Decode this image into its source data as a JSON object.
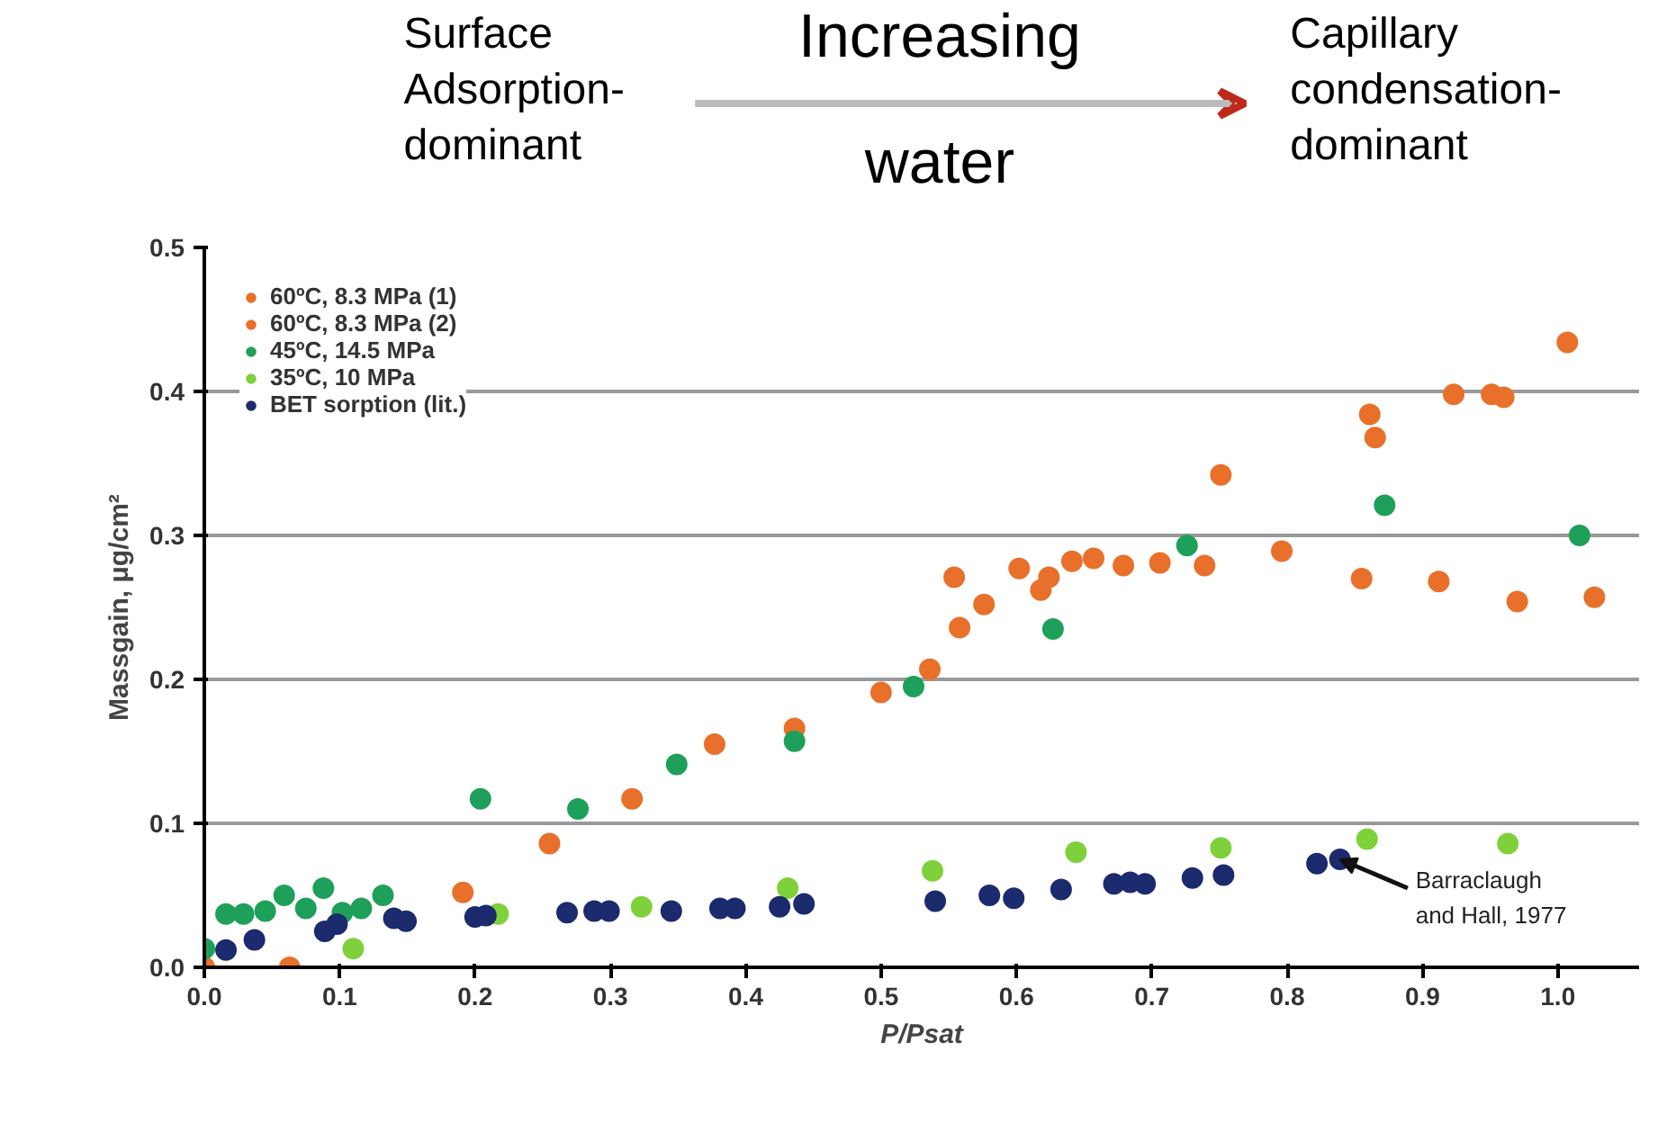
{
  "chart_data": {
    "type": "scatter",
    "xlabel": "P/Psat",
    "ylabel": "Massgain, μg/cm²",
    "annotations": [
      "Surface\nAdsorption-\ndominant",
      "Increasing\nwater",
      "Capillary\ncondensation-\ndominant",
      {
        "text": "Barraclaugh\nand Hall, 1977",
        "x": 0.839,
        "y": 0.075
      }
    ],
    "xlim": [
      0,
      1.06
    ],
    "ylim": [
      0,
      0.5
    ],
    "xticks": [
      {
        "value": 0,
        "label": "0.0"
      },
      0.1,
      0.2,
      0.3,
      0.4,
      0.5,
      0.6,
      0.7,
      0.8,
      0.9,
      {
        "value": 1,
        "label": "1.0"
      }
    ],
    "yticks": [
      {
        "value": 0,
        "label": "0.0"
      },
      0.1,
      0.2,
      0.3,
      0.4,
      0.5
    ],
    "grid": "y",
    "legend": "top left",
    "marker": "circle",
    "series": [
      {
        "name": "60ºC, 8.3 MPa (1)",
        "color": "#e8702a",
        "x": [
          0.0,
          0.536,
          0.554,
          0.576,
          0.602,
          0.618,
          0.624,
          0.641,
          0.657,
          0.706,
          0.751,
          0.861,
          0.865,
          0.923,
          0.951,
          0.96,
          1.007
        ],
        "values": [
          0.0,
          0.207,
          0.271,
          0.252,
          0.277,
          0.262,
          0.271,
          0.282,
          0.284,
          0.281,
          0.342,
          0.384,
          0.368,
          0.398,
          0.398,
          0.396,
          0.434
        ]
      },
      {
        "name": "60ºC, 8.3 MPa (2)",
        "color": "#e8702a",
        "x": [
          0.063,
          0.191,
          0.255,
          0.316,
          0.377,
          0.436,
          0.5,
          0.558,
          0.679,
          0.739,
          0.796,
          0.855,
          0.912,
          0.97,
          1.027
        ],
        "values": [
          0.0,
          0.052,
          0.086,
          0.117,
          0.155,
          0.166,
          0.191,
          0.236,
          0.279,
          0.279,
          0.289,
          0.27,
          0.268,
          0.254,
          0.257
        ]
      },
      {
        "name": "45ºC, 14.5 MPa",
        "color": "#1fa05a",
        "x": [
          0.0,
          0.016,
          0.029,
          0.045,
          0.059,
          0.075,
          0.088,
          0.102,
          0.116,
          0.132,
          0.204,
          0.276,
          0.349,
          0.436,
          0.524,
          0.627,
          0.726,
          0.872,
          1.016
        ],
        "values": [
          0.013,
          0.037,
          0.037,
          0.039,
          0.05,
          0.041,
          0.055,
          0.038,
          0.041,
          0.05,
          0.117,
          0.11,
          0.141,
          0.157,
          0.195,
          0.235,
          0.293,
          0.321,
          0.3
        ]
      },
      {
        "name": "35ºC, 10 MPa",
        "color": "#7fd13b",
        "x": [
          0.11,
          0.217,
          0.323,
          0.431,
          0.538,
          0.644,
          0.751,
          0.859,
          0.963
        ],
        "values": [
          0.013,
          0.037,
          0.042,
          0.055,
          0.067,
          0.08,
          0.083,
          0.089,
          0.086
        ]
      },
      {
        "name": "BET sorption (lit.)",
        "color": "#1c2a6e",
        "x": [
          0.016,
          0.037,
          0.089,
          0.098,
          0.14,
          0.149,
          0.2,
          0.208,
          0.268,
          0.288,
          0.299,
          0.345,
          0.381,
          0.392,
          0.425,
          0.443,
          0.54,
          0.58,
          0.598,
          0.633,
          0.672,
          0.684,
          0.695,
          0.73,
          0.753,
          0.822,
          0.839
        ],
        "values": [
          0.012,
          0.019,
          0.025,
          0.03,
          0.034,
          0.032,
          0.035,
          0.036,
          0.038,
          0.039,
          0.039,
          0.039,
          0.041,
          0.041,
          0.042,
          0.044,
          0.046,
          0.05,
          0.048,
          0.054,
          0.058,
          0.059,
          0.058,
          0.062,
          0.064,
          0.072,
          0.075
        ]
      }
    ]
  }
}
